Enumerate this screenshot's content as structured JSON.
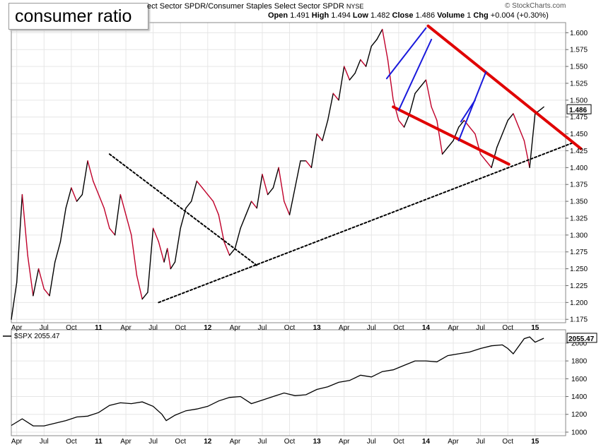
{
  "header": {
    "title": "consumer ratio",
    "series_name": "ect Sector SPDR/Consumer Staples Select Sector SPDR",
    "exchange": "NYSE",
    "copyright": "© StockCharts.com",
    "ohlc": {
      "open_label": "Open",
      "open": "1.491",
      "high_label": "High",
      "high": "1.494",
      "low_label": "Low",
      "low": "1.482",
      "close_label": "Close",
      "close": "1.486",
      "volume_label": "Volume",
      "volume": "1",
      "chg_label": "Chg",
      "chg": "+0.004 (+0.30%)"
    }
  },
  "colors": {
    "up": "#000000",
    "down": "#c0002a",
    "channel": "#e00000",
    "flag": "#1a1adc",
    "trend": "#000000"
  },
  "chart_data": [
    {
      "type": "line",
      "name": "ratio",
      "title": "consumer ratio",
      "ylim": [
        1.17,
        1.615
      ],
      "yticks": [
        "1.175",
        "1.200",
        "1.225",
        "1.250",
        "1.275",
        "1.300",
        "1.325",
        "1.350",
        "1.375",
        "1.400",
        "1.425",
        "1.450",
        "1.475",
        "1.500",
        "1.525",
        "1.550",
        "1.575",
        "1.600"
      ],
      "last_label": "1.486",
      "x": [
        2010.2,
        2010.25,
        2010.3,
        2010.35,
        2010.4,
        2010.45,
        2010.5,
        2010.55,
        2010.6,
        2010.65,
        2010.7,
        2010.75,
        2010.8,
        2010.85,
        2010.9,
        2010.95,
        2011.0,
        2011.05,
        2011.1,
        2011.15,
        2011.2,
        2011.25,
        2011.3,
        2011.35,
        2011.4,
        2011.45,
        2011.5,
        2011.55,
        2011.6,
        2011.63,
        2011.66,
        2011.7,
        2011.75,
        2011.8,
        2011.85,
        2011.9,
        2011.95,
        2012.0,
        2012.05,
        2012.1,
        2012.15,
        2012.2,
        2012.25,
        2012.3,
        2012.35,
        2012.4,
        2012.45,
        2012.5,
        2012.55,
        2012.6,
        2012.65,
        2012.7,
        2012.75,
        2012.8,
        2012.85,
        2012.9,
        2012.95,
        2013.0,
        2013.05,
        2013.1,
        2013.15,
        2013.2,
        2013.25,
        2013.3,
        2013.35,
        2013.4,
        2013.45,
        2013.5,
        2013.55,
        2013.6,
        2013.65,
        2013.7,
        2013.75,
        2013.8,
        2013.85,
        2013.9,
        2013.95,
        2014.0,
        2014.05,
        2014.1,
        2014.15,
        2014.2,
        2014.25,
        2014.3,
        2014.35,
        2014.4,
        2014.45,
        2014.5,
        2014.55,
        2014.6,
        2014.65,
        2014.7,
        2014.75,
        2014.8,
        2014.85,
        2014.9,
        2014.95,
        2015.0,
        2015.05,
        2015.08
      ],
      "values": [
        1.175,
        1.23,
        1.36,
        1.27,
        1.21,
        1.25,
        1.22,
        1.21,
        1.26,
        1.29,
        1.34,
        1.37,
        1.35,
        1.36,
        1.41,
        1.38,
        1.36,
        1.34,
        1.31,
        1.3,
        1.36,
        1.33,
        1.3,
        1.24,
        1.205,
        1.215,
        1.31,
        1.29,
        1.26,
        1.28,
        1.25,
        1.26,
        1.31,
        1.34,
        1.35,
        1.38,
        1.37,
        1.36,
        1.35,
        1.33,
        1.29,
        1.27,
        1.28,
        1.31,
        1.33,
        1.35,
        1.34,
        1.39,
        1.36,
        1.37,
        1.4,
        1.35,
        1.33,
        1.37,
        1.41,
        1.41,
        1.4,
        1.45,
        1.44,
        1.47,
        1.51,
        1.5,
        1.55,
        1.53,
        1.54,
        1.56,
        1.55,
        1.58,
        1.59,
        1.605,
        1.56,
        1.5,
        1.47,
        1.46,
        1.48,
        1.51,
        1.52,
        1.53,
        1.49,
        1.47,
        1.42,
        1.43,
        1.44,
        1.46,
        1.47,
        1.46,
        1.45,
        1.42,
        1.41,
        1.4,
        1.43,
        1.45,
        1.47,
        1.48,
        1.46,
        1.44,
        1.4,
        1.48,
        1.486,
        1.49
      ]
    },
    {
      "type": "line",
      "name": "$SPX",
      "legend": "$SPX 2055.47",
      "ylim": [
        960,
        2150
      ],
      "yticks": [
        "1000",
        "1200",
        "1400",
        "1600",
        "1800",
        "2000"
      ],
      "last_label": "2055.47",
      "x": [
        2010.2,
        2010.3,
        2010.4,
        2010.5,
        2010.6,
        2010.7,
        2010.8,
        2010.9,
        2011.0,
        2011.1,
        2011.2,
        2011.3,
        2011.4,
        2011.5,
        2011.58,
        2011.62,
        2011.7,
        2011.8,
        2011.9,
        2012.0,
        2012.1,
        2012.2,
        2012.3,
        2012.4,
        2012.5,
        2012.6,
        2012.7,
        2012.8,
        2012.9,
        2013.0,
        2013.1,
        2013.2,
        2013.3,
        2013.4,
        2013.5,
        2013.6,
        2013.7,
        2013.8,
        2013.9,
        2014.0,
        2014.1,
        2014.2,
        2014.3,
        2014.4,
        2014.5,
        2014.6,
        2014.7,
        2014.75,
        2014.8,
        2014.9,
        2014.95,
        2015.0,
        2015.08
      ],
      "values": [
        1075,
        1150,
        1070,
        1070,
        1100,
        1130,
        1170,
        1180,
        1220,
        1300,
        1330,
        1320,
        1340,
        1290,
        1200,
        1130,
        1190,
        1240,
        1260,
        1290,
        1350,
        1390,
        1400,
        1320,
        1360,
        1400,
        1440,
        1410,
        1420,
        1480,
        1510,
        1560,
        1580,
        1640,
        1620,
        1680,
        1700,
        1750,
        1800,
        1800,
        1790,
        1860,
        1880,
        1900,
        1940,
        1970,
        1980,
        1940,
        1880,
        2050,
        2070,
        2010,
        2055
      ]
    }
  ],
  "x_axis": {
    "labels": [
      {
        "t": 2010.25,
        "text": "Apr"
      },
      {
        "t": 2010.5,
        "text": "Jul"
      },
      {
        "t": 2010.75,
        "text": "Oct"
      },
      {
        "t": 2011.0,
        "text": "11",
        "bold": true
      },
      {
        "t": 2011.25,
        "text": "Apr"
      },
      {
        "t": 2011.5,
        "text": "Jul"
      },
      {
        "t": 2011.75,
        "text": "Oct"
      },
      {
        "t": 2012.0,
        "text": "12",
        "bold": true
      },
      {
        "t": 2012.25,
        "text": "Apr"
      },
      {
        "t": 2012.5,
        "text": "Jul"
      },
      {
        "t": 2012.75,
        "text": "Oct"
      },
      {
        "t": 2013.0,
        "text": "13",
        "bold": true
      },
      {
        "t": 2013.25,
        "text": "Apr"
      },
      {
        "t": 2013.5,
        "text": "Jul"
      },
      {
        "t": 2013.75,
        "text": "Oct"
      },
      {
        "t": 2014.0,
        "text": "14",
        "bold": true
      },
      {
        "t": 2014.25,
        "text": "Apr"
      },
      {
        "t": 2014.5,
        "text": "Jul"
      },
      {
        "t": 2014.75,
        "text": "Oct"
      },
      {
        "t": 2015.0,
        "text": "15",
        "bold": true
      }
    ]
  },
  "annotations": [
    {
      "kind": "trend",
      "a": [
        2011.1,
        1.42
      ],
      "b": [
        2012.45,
        1.255
      ]
    },
    {
      "kind": "trend",
      "a": [
        2011.55,
        1.2
      ],
      "b": [
        2015.35,
        1.437
      ]
    },
    {
      "kind": "channel",
      "a": [
        2014.02,
        1.61
      ],
      "b": [
        2015.42,
        1.428
      ]
    },
    {
      "kind": "channel",
      "a": [
        2013.7,
        1.49
      ],
      "b": [
        2014.76,
        1.405
      ]
    },
    {
      "kind": "flag",
      "a": [
        2013.64,
        1.532
      ],
      "b": [
        2014.0,
        1.607
      ]
    },
    {
      "kind": "flag",
      "a": [
        2013.75,
        1.485
      ],
      "b": [
        2014.05,
        1.59
      ]
    },
    {
      "kind": "flag",
      "a": [
        2014.3,
        1.44
      ],
      "b": [
        2014.55,
        1.542
      ]
    },
    {
      "kind": "flag",
      "a": [
        2014.32,
        1.468
      ],
      "b": [
        2014.45,
        1.5
      ]
    }
  ]
}
